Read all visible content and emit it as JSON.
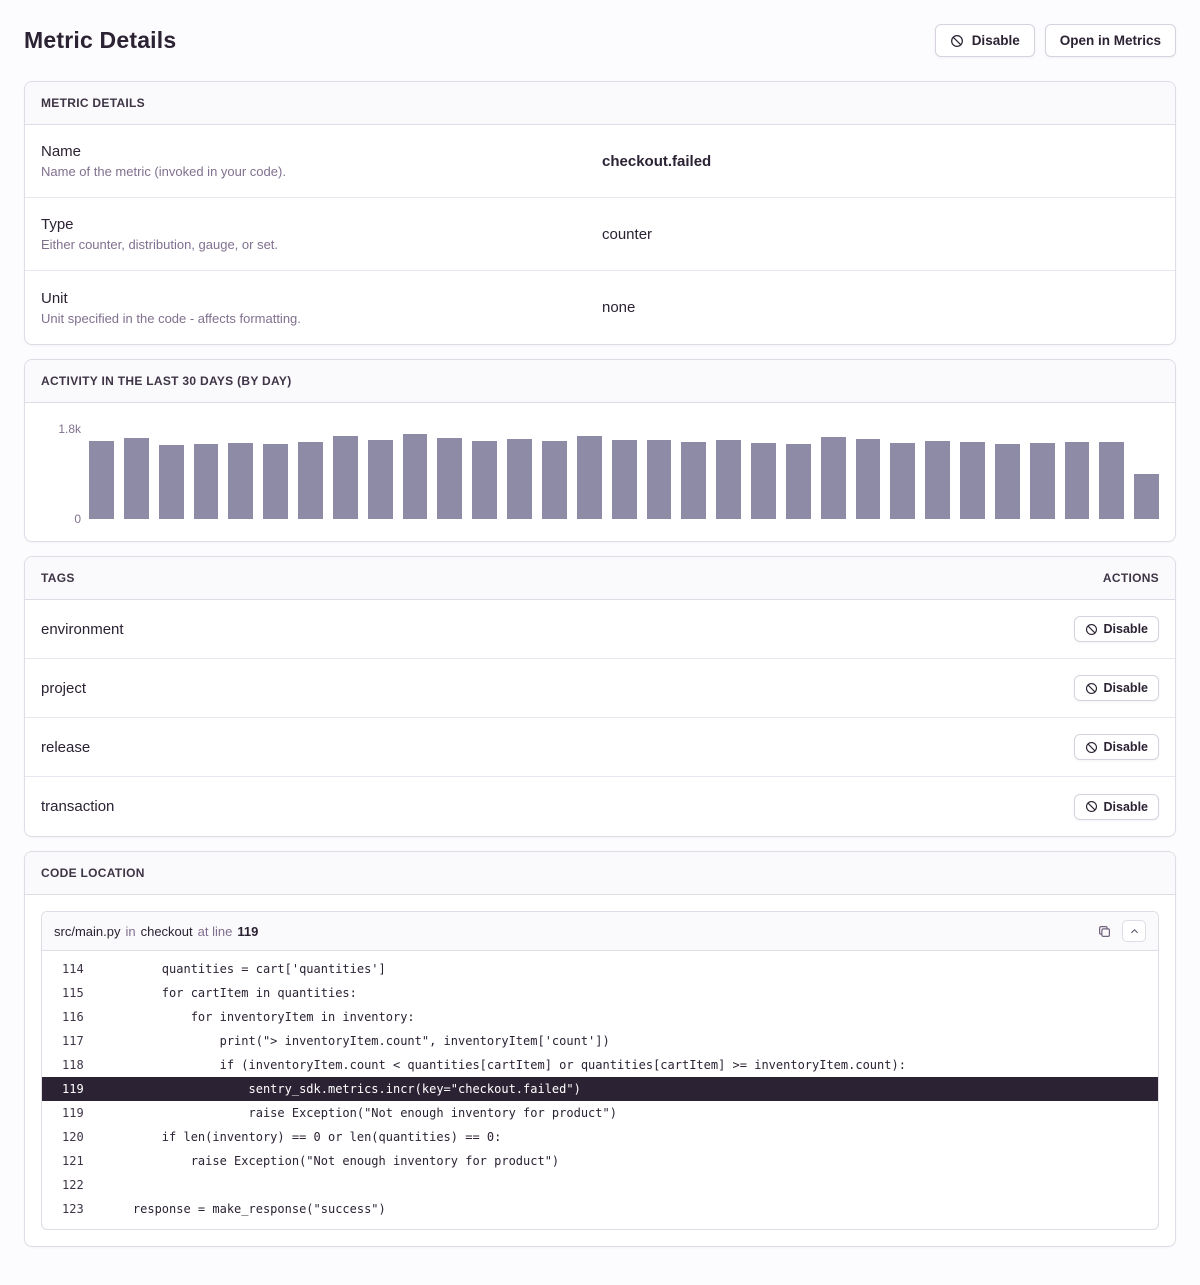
{
  "page": {
    "title": "Metric Details",
    "actions": {
      "disable": "Disable",
      "open_in_metrics": "Open in Metrics"
    }
  },
  "details_panel": {
    "header": "METRIC DETAILS",
    "rows": [
      {
        "label": "Name",
        "description": "Name of the metric (invoked in your code).",
        "value": "checkout.failed",
        "bold": true
      },
      {
        "label": "Type",
        "description": "Either counter, distribution, gauge, or set.",
        "value": "counter",
        "bold": false
      },
      {
        "label": "Unit",
        "description": "Unit specified in the code - affects formatting.",
        "value": "none",
        "bold": false
      }
    ]
  },
  "activity_panel": {
    "header": "ACTIVITY IN THE LAST 30 DAYS (BY DAY)"
  },
  "chart_data": {
    "type": "bar",
    "title": "Activity in the last 30 days (by day)",
    "values": [
      1560,
      1620,
      1480,
      1500,
      1520,
      1510,
      1545,
      1660,
      1580,
      1700,
      1630,
      1560,
      1600,
      1570,
      1670,
      1590,
      1580,
      1540,
      1590,
      1530,
      1500,
      1650,
      1610,
      1520,
      1560,
      1540,
      1500,
      1530,
      1540,
      1550,
      900
    ],
    "xlabel": "",
    "ylabel": "",
    "ylim": [
      0,
      1800
    ],
    "y_ticks": [
      "1.8k",
      "0"
    ],
    "x_tick_labels_visible": false,
    "grid": false,
    "legend": "none",
    "bar_color": "#8d8ba6"
  },
  "tags_panel": {
    "header": "TAGS",
    "actions_header": "ACTIONS",
    "disable_label": "Disable",
    "rows": [
      {
        "name": "environment"
      },
      {
        "name": "project"
      },
      {
        "name": "release"
      },
      {
        "name": "transaction"
      }
    ]
  },
  "code_panel": {
    "header": "CODE LOCATION",
    "frame": {
      "file": "src/main.py",
      "in_word": "in",
      "function": "checkout",
      "at_line_word": "at line",
      "line": "119"
    },
    "lines": [
      {
        "no": "114",
        "code": "        quantities = cart['quantities']",
        "active": false
      },
      {
        "no": "115",
        "code": "        for cartItem in quantities:",
        "active": false
      },
      {
        "no": "116",
        "code": "            for inventoryItem in inventory:",
        "active": false
      },
      {
        "no": "117",
        "code": "                print(\"> inventoryItem.count\", inventoryItem['count'])",
        "active": false
      },
      {
        "no": "118",
        "code": "                if (inventoryItem.count < quantities[cartItem] or quantities[cartItem] >= inventoryItem.count):",
        "active": false
      },
      {
        "no": "119",
        "code": "                    sentry_sdk.metrics.incr(key=\"checkout.failed\")",
        "active": true
      },
      {
        "no": "119",
        "code": "                    raise Exception(\"Not enough inventory for product\")",
        "active": false
      },
      {
        "no": "120",
        "code": "        if len(inventory) == 0 or len(quantities) == 0:",
        "active": false
      },
      {
        "no": "121",
        "code": "            raise Exception(\"Not enough inventory for product\")",
        "active": false
      },
      {
        "no": "122",
        "code": "",
        "active": false
      },
      {
        "no": "123",
        "code": "    response = make_response(\"success\")",
        "active": false
      }
    ]
  }
}
